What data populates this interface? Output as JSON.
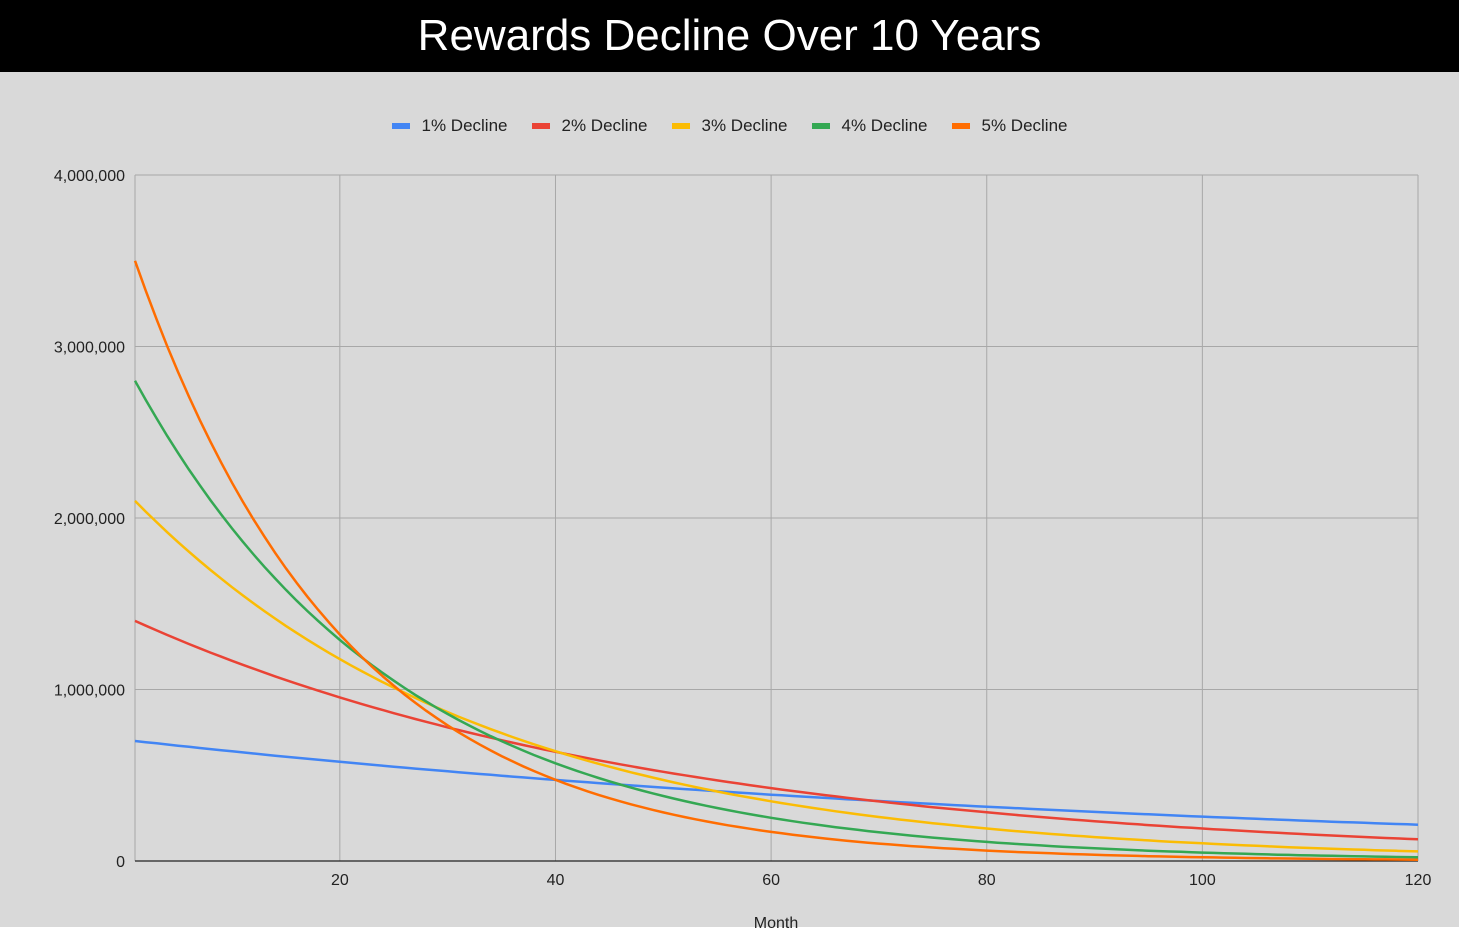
{
  "chart_data": {
    "type": "line",
    "title": "Rewards Decline Over 10 Years",
    "xlabel": "Month",
    "ylabel": "",
    "xlim": [
      1,
      120
    ],
    "ylim": [
      0,
      4000000
    ],
    "x_ticks": [
      20,
      40,
      60,
      80,
      100,
      120
    ],
    "x_tick_labels": [
      "20",
      "40",
      "60",
      "80",
      "100",
      "120"
    ],
    "y_ticks": [
      0,
      1000000,
      2000000,
      3000000,
      4000000
    ],
    "y_tick_labels": [
      "0",
      "1,000,000",
      "2,000,000",
      "3,000,000",
      "4,000,000"
    ],
    "grid": true,
    "legend_position": "top",
    "series": [
      {
        "name": "1% Decline",
        "color": "#4285f4",
        "start_value": 700000,
        "monthly_decline": 0.01,
        "value_at_month_120": 211000
      },
      {
        "name": "2% Decline",
        "color": "#ea4335",
        "start_value": 1400000,
        "monthly_decline": 0.02,
        "value_at_month_120": 127000
      },
      {
        "name": "3% Decline",
        "color": "#fbbc04",
        "start_value": 2100000,
        "monthly_decline": 0.03,
        "value_at_month_120": 56000
      },
      {
        "name": "4% Decline",
        "color": "#34a853",
        "start_value": 2800000,
        "monthly_decline": 0.04,
        "value_at_month_120": 21000
      },
      {
        "name": "5% Decline",
        "color": "#ff6d01",
        "start_value": 3500000,
        "monthly_decline": 0.05,
        "value_at_month_120": 7800
      }
    ]
  }
}
